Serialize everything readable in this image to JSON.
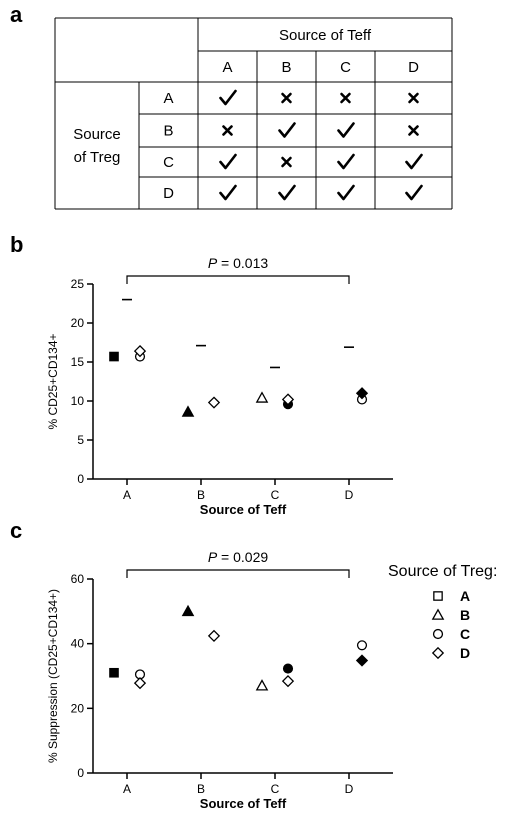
{
  "panels": {
    "a": "a",
    "b": "b",
    "c": "c"
  },
  "table": {
    "header": "Source of Teff",
    "row_header_line1": "Source",
    "row_header_line2": "of Treg",
    "teff_columns": [
      "A",
      "B",
      "C",
      "D"
    ],
    "treg_rows": [
      "A",
      "B",
      "C",
      "D"
    ],
    "cells": [
      [
        "check",
        "cross",
        "cross",
        "cross"
      ],
      [
        "cross",
        "check",
        "check",
        "cross"
      ],
      [
        "check",
        "cross",
        "check",
        "check"
      ],
      [
        "check",
        "check",
        "check",
        "check"
      ]
    ]
  },
  "chart_data": [
    {
      "type": "scatter",
      "panel": "b",
      "xlabel": "Source of Teff",
      "ylabel": "% CD25+CD134+",
      "categories": [
        "A",
        "B",
        "C",
        "D"
      ],
      "ylim": [
        0,
        25
      ],
      "yticks": [
        0,
        5,
        10,
        15,
        20,
        25
      ],
      "annotation": {
        "prefix": "P",
        "text": " = 0.013",
        "from": "A",
        "to": "D"
      },
      "reference_marks": [
        {
          "category": "A",
          "value": 23.0
        },
        {
          "category": "B",
          "value": 17.1
        },
        {
          "category": "C",
          "value": 14.3
        },
        {
          "category": "D",
          "value": 16.9
        }
      ],
      "series": [
        {
          "name": "A",
          "marker": "square",
          "points": [
            {
              "category": "A",
              "value": 15.7,
              "filled": true
            }
          ]
        },
        {
          "name": "B",
          "marker": "triangle",
          "points": [
            {
              "category": "B",
              "value": 8.6,
              "filled": true
            },
            {
              "category": "C",
              "value": 10.4,
              "filled": false
            }
          ]
        },
        {
          "name": "C",
          "marker": "circle",
          "points": [
            {
              "category": "A",
              "value": 15.7,
              "filled": false
            },
            {
              "category": "C",
              "value": 9.6,
              "filled": true
            },
            {
              "category": "D",
              "value": 10.2,
              "filled": false
            }
          ]
        },
        {
          "name": "D",
          "marker": "diamond",
          "points": [
            {
              "category": "A",
              "value": 16.4,
              "filled": false
            },
            {
              "category": "B",
              "value": 9.8,
              "filled": false
            },
            {
              "category": "C",
              "value": 10.2,
              "filled": false
            },
            {
              "category": "D",
              "value": 11.0,
              "filled": true
            }
          ]
        }
      ]
    },
    {
      "type": "scatter",
      "panel": "c",
      "xlabel": "Source of Teff",
      "ylabel": "% Suppression (CD25+CD134+)",
      "categories": [
        "A",
        "B",
        "C",
        "D"
      ],
      "ylim": [
        0,
        60
      ],
      "yticks": [
        0,
        20,
        40,
        60
      ],
      "annotation": {
        "prefix": "P",
        "text": " = 0.029",
        "from": "A",
        "to": "D"
      },
      "series": [
        {
          "name": "A",
          "marker": "square",
          "points": [
            {
              "category": "A",
              "value": 31.0,
              "filled": true
            }
          ]
        },
        {
          "name": "B",
          "marker": "triangle",
          "points": [
            {
              "category": "B",
              "value": 50.0,
              "filled": true
            },
            {
              "category": "C",
              "value": 27.0,
              "filled": false
            }
          ]
        },
        {
          "name": "C",
          "marker": "circle",
          "points": [
            {
              "category": "A",
              "value": 30.5,
              "filled": false
            },
            {
              "category": "C",
              "value": 32.3,
              "filled": true
            },
            {
              "category": "D",
              "value": 39.5,
              "filled": false
            }
          ]
        },
        {
          "name": "D",
          "marker": "diamond",
          "points": [
            {
              "category": "A",
              "value": 27.8,
              "filled": false
            },
            {
              "category": "B",
              "value": 42.4,
              "filled": false
            },
            {
              "category": "C",
              "value": 28.4,
              "filled": false
            },
            {
              "category": "D",
              "value": 34.8,
              "filled": true
            }
          ]
        }
      ]
    }
  ],
  "legend": {
    "title": "Source of Treg:",
    "items": [
      {
        "label": "A",
        "marker": "square"
      },
      {
        "label": "B",
        "marker": "triangle"
      },
      {
        "label": "C",
        "marker": "circle"
      },
      {
        "label": "D",
        "marker": "diamond"
      }
    ]
  }
}
